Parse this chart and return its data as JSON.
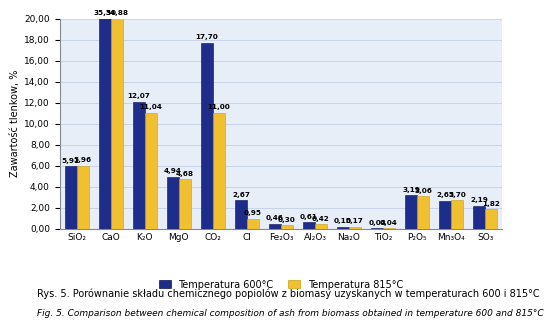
{
  "categories": [
    "SiO₂",
    "CaO",
    "K₂O",
    "MgO",
    "CO₂",
    "Cl",
    "Fe₂O₃",
    "Al₂O₃",
    "Na₂O",
    "TiO₂",
    "P₂O₅",
    "Mn₃O₄",
    "SO₃"
  ],
  "values_600": [
    5.91,
    35.5,
    12.07,
    4.94,
    17.7,
    2.67,
    0.46,
    0.61,
    0.15,
    0.04,
    3.19,
    2.65,
    2.19
  ],
  "values_815": [
    5.96,
    34.88,
    11.04,
    4.68,
    11.0,
    0.95,
    0.3,
    0.42,
    0.17,
    0.04,
    3.06,
    2.7,
    1.82
  ],
  "color_600": "#1f2d8a",
  "color_815": "#f0c030",
  "ylim": [
    0,
    20.0
  ],
  "yticks": [
    0.0,
    2.0,
    4.0,
    6.0,
    8.0,
    10.0,
    12.0,
    14.0,
    16.0,
    18.0,
    20.0
  ],
  "ylabel": "Zawartość tlenkow, %",
  "legend_600": "Temperatura 600°C",
  "legend_815": "Temperatura 815°C",
  "caption_pl": "Rys. 5. Porównanie składu chemicznego popiolów z biomasy uzyskanych w temperaturach 600 i 815°C",
  "caption_en": "Fig. 5. Comparison between chemical composition of ash from biomass obtained in temperature 600 and 815°C",
  "bar_width": 0.35,
  "bg_color": "#ffffff",
  "plot_bg_color": "#e8eef8",
  "grid_color": "#c8d4e8",
  "label_fontsize": 5.2,
  "axis_fontsize": 7.0,
  "tick_fontsize": 6.5,
  "legend_fontsize": 7.0,
  "caption_fontsize_pl": 7.0,
  "caption_fontsize_en": 6.5
}
